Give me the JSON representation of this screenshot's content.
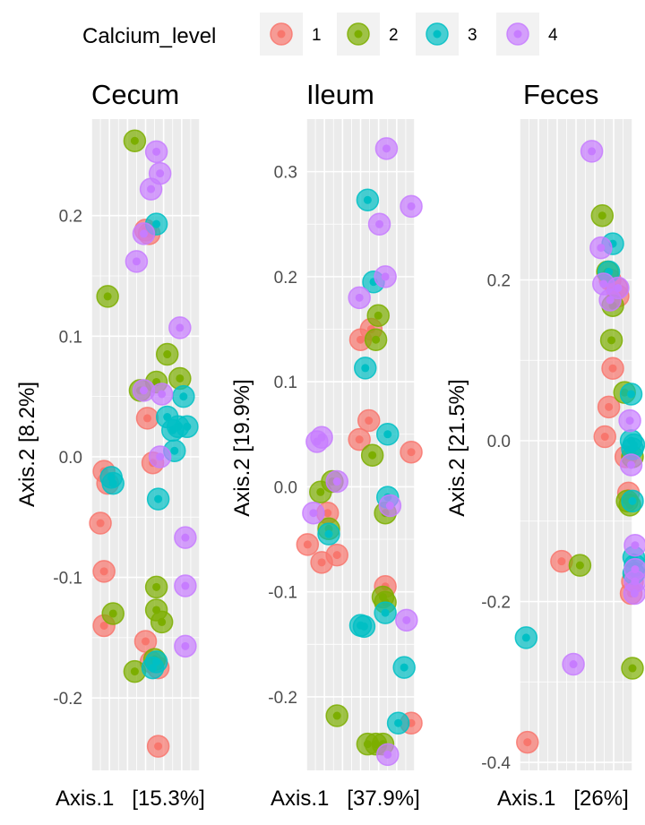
{
  "legend": {
    "title": "Calcium_level",
    "entries": [
      {
        "label": "1",
        "color": "#F8766D"
      },
      {
        "label": "2",
        "color": "#7CAE00"
      },
      {
        "label": "3",
        "color": "#00BFC4"
      },
      {
        "label": "4",
        "color": "#C77CFF"
      }
    ]
  },
  "chart_data": [
    {
      "type": "scatter",
      "title": "Cecum",
      "xlabel": "Axis.1   [15.3%]",
      "ylabel": "Axis.2   [8.2%]",
      "xlim": [
        -0.08,
        0.22
      ],
      "ylim": [
        -0.26,
        0.28
      ],
      "yticks": [
        -0.2,
        -0.1,
        0.0,
        0.1,
        0.2
      ],
      "ytick_labels": [
        "-0.2",
        "-0.1",
        "0.0",
        "0.1",
        "0.2"
      ],
      "grid": true,
      "series": [
        {
          "name": "1",
          "points": [
            [
              0.07,
              0.188
            ],
            [
              0.08,
              0.185
            ],
            [
              0.075,
              0.032
            ],
            [
              -0.055,
              -0.055
            ],
            [
              -0.045,
              -0.012
            ],
            [
              -0.035,
              -0.022
            ],
            [
              -0.045,
              -0.095
            ],
            [
              -0.045,
              -0.14
            ],
            [
              0.07,
              -0.153
            ],
            [
              0.085,
              -0.17
            ],
            [
              0.105,
              -0.175
            ],
            [
              0.105,
              -0.24
            ],
            [
              0.09,
              -0.005
            ]
          ]
        },
        {
          "name": "2",
          "points": [
            [
              0.04,
              0.262
            ],
            [
              -0.035,
              0.133
            ],
            [
              0.13,
              0.085
            ],
            [
              0.1,
              0.062
            ],
            [
              0.055,
              0.055
            ],
            [
              0.165,
              0.065
            ],
            [
              -0.02,
              -0.13
            ],
            [
              0.1,
              -0.108
            ],
            [
              0.1,
              -0.127
            ],
            [
              0.04,
              -0.178
            ],
            [
              0.095,
              -0.168
            ],
            [
              0.115,
              -0.137
            ]
          ]
        },
        {
          "name": "3",
          "points": [
            [
              0.1,
              0.193
            ],
            [
              0.13,
              0.033
            ],
            [
              0.145,
              0.022
            ],
            [
              0.16,
              0.025
            ],
            [
              0.185,
              0.025
            ],
            [
              0.15,
              0.005
            ],
            [
              0.175,
              0.05
            ],
            [
              -0.025,
              -0.017
            ],
            [
              -0.02,
              -0.022
            ],
            [
              0.105,
              -0.035
            ],
            [
              0.1,
              -0.17
            ],
            [
              0.09,
              -0.175
            ]
          ]
        },
        {
          "name": "4",
          "points": [
            [
              0.1,
              0.253
            ],
            [
              0.11,
              0.235
            ],
            [
              0.085,
              0.222
            ],
            [
              0.065,
              0.185
            ],
            [
              0.045,
              0.162
            ],
            [
              0.165,
              0.107
            ],
            [
              0.065,
              0.055
            ],
            [
              0.115,
              0.052
            ],
            [
              0.11,
              0.0
            ],
            [
              0.18,
              -0.067
            ],
            [
              0.18,
              -0.107
            ],
            [
              0.18,
              -0.157
            ]
          ]
        }
      ]
    },
    {
      "type": "scatter",
      "title": "Ileum",
      "xlabel": "Axis.1   [37.9%]",
      "ylabel": "Axis.2   [19.9%]",
      "xlim": [
        -0.18,
        0.28
      ],
      "ylim": [
        -0.27,
        0.35
      ],
      "yticks": [
        -0.2,
        -0.1,
        0.0,
        0.1,
        0.2,
        0.3
      ],
      "ytick_labels": [
        "-0.2",
        "-0.1",
        "0.0",
        "0.1",
        "0.2",
        "0.3"
      ],
      "grid": true,
      "series": [
        {
          "name": "1",
          "points": [
            [
              0.05,
              0.14
            ],
            [
              0.095,
              0.15
            ],
            [
              0.085,
              0.063
            ],
            [
              0.045,
              0.045
            ],
            [
              -0.175,
              -0.055
            ],
            [
              -0.115,
              -0.072
            ],
            [
              -0.09,
              -0.025
            ],
            [
              -0.05,
              -0.065
            ],
            [
              0.155,
              -0.095
            ],
            [
              0.265,
              -0.225
            ],
            [
              0.265,
              0.033
            ]
          ]
        },
        {
          "name": "2",
          "points": [
            [
              0.125,
              0.163
            ],
            [
              0.115,
              0.14
            ],
            [
              0.1,
              0.03
            ],
            [
              -0.12,
              -0.005
            ],
            [
              -0.07,
              0.005
            ],
            [
              -0.085,
              -0.04
            ],
            [
              0.145,
              -0.105
            ],
            [
              0.155,
              -0.11
            ],
            [
              0.155,
              -0.025
            ],
            [
              -0.05,
              -0.218
            ],
            [
              0.08,
              -0.245
            ],
            [
              0.115,
              -0.245
            ],
            [
              0.145,
              -0.245
            ]
          ]
        },
        {
          "name": "3",
          "points": [
            [
              0.08,
              0.273
            ],
            [
              0.105,
              0.195
            ],
            [
              0.07,
              0.113
            ],
            [
              0.165,
              0.05
            ],
            [
              0.165,
              -0.01
            ],
            [
              -0.085,
              -0.045
            ],
            [
              0.05,
              -0.132
            ],
            [
              0.065,
              -0.133
            ],
            [
              0.155,
              -0.12
            ],
            [
              0.235,
              -0.172
            ],
            [
              0.21,
              -0.225
            ]
          ]
        },
        {
          "name": "4",
          "points": [
            [
              0.16,
              0.322
            ],
            [
              0.265,
              0.267
            ],
            [
              0.13,
              0.25
            ],
            [
              0.155,
              0.2
            ],
            [
              0.045,
              0.18
            ],
            [
              -0.135,
              0.043
            ],
            [
              -0.115,
              0.047
            ],
            [
              -0.05,
              0.005
            ],
            [
              0.175,
              -0.018
            ],
            [
              0.245,
              -0.127
            ],
            [
              0.165,
              -0.255
            ],
            [
              -0.15,
              -0.025
            ]
          ]
        }
      ]
    },
    {
      "type": "scatter",
      "title": "Feces",
      "xlabel": "Axis.1   [26%]",
      "ylabel": "Axis.2   [21.5%]",
      "xlim": [
        -0.37,
        0.06
      ],
      "ylim": [
        -0.41,
        0.4
      ],
      "yticks": [
        -0.4,
        -0.2,
        0.0,
        0.2
      ],
      "ytick_labels": [
        "-0.4",
        "-0.2",
        "0.0",
        "0.2"
      ],
      "grid": true,
      "series": [
        {
          "name": "1",
          "points": [
            [
              -0.34,
              -0.375
            ],
            [
              -0.21,
              -0.15
            ],
            [
              -0.025,
              0.2
            ],
            [
              0.0,
              0.19
            ],
            [
              0.005,
              0.18
            ],
            [
              -0.015,
              0.09
            ],
            [
              -0.045,
              0.005
            ],
            [
              -0.03,
              0.042
            ],
            [
              0.035,
              -0.02
            ],
            [
              0.045,
              -0.065
            ],
            [
              0.055,
              -0.19
            ],
            [
              0.06,
              -0.175
            ]
          ]
        },
        {
          "name": "2",
          "points": [
            [
              -0.055,
              0.28
            ],
            [
              -0.035,
              0.21
            ],
            [
              -0.015,
              0.168
            ],
            [
              -0.02,
              0.125
            ],
            [
              0.03,
              0.06
            ],
            [
              0.04,
              -0.075
            ],
            [
              0.05,
              -0.08
            ],
            [
              0.06,
              -0.02
            ],
            [
              -0.14,
              -0.155
            ],
            [
              0.06,
              -0.283
            ]
          ]
        },
        {
          "name": "3",
          "points": [
            [
              -0.345,
              -0.245
            ],
            [
              -0.015,
              0.245
            ],
            [
              -0.03,
              0.21
            ],
            [
              0.055,
              0.058
            ],
            [
              0.055,
              0.0
            ],
            [
              0.06,
              -0.01
            ],
            [
              0.065,
              -0.005
            ],
            [
              0.06,
              -0.075
            ],
            [
              0.065,
              -0.145
            ],
            [
              0.07,
              -0.155
            ],
            [
              0.065,
              -0.165
            ]
          ]
        },
        {
          "name": "4",
          "points": [
            [
              -0.095,
              0.36
            ],
            [
              -0.06,
              0.24
            ],
            [
              -0.05,
              0.195
            ],
            [
              -0.025,
              0.175
            ],
            [
              0.005,
              0.19
            ],
            [
              0.05,
              0.025
            ],
            [
              0.055,
              -0.03
            ],
            [
              -0.165,
              -0.278
            ],
            [
              0.07,
              -0.13
            ],
            [
              0.07,
              -0.16
            ],
            [
              0.07,
              -0.175
            ],
            [
              0.068,
              -0.19
            ]
          ]
        }
      ]
    }
  ]
}
